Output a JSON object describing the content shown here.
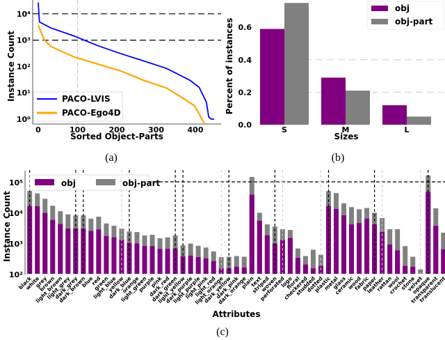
{
  "chart_data": [
    {
      "id": "a",
      "type": "line",
      "caption": "(a)",
      "title": "",
      "xlabel": "Sorted Object-Parts",
      "ylabel": "Instance Count",
      "yscale": "log",
      "xlim": [
        -10,
        460
      ],
      "ylim": [
        0.7,
        30000
      ],
      "xticks": [
        0,
        100,
        200,
        300,
        400
      ],
      "xtick_labels": [
        "0",
        "100",
        "200",
        "300",
        "400"
      ],
      "yticks": [
        1,
        10,
        100,
        1000,
        10000
      ],
      "ytick_labels": [
        "10⁰",
        "10¹",
        "10²",
        "10³",
        "10⁴"
      ],
      "hlines": [
        10000,
        1000
      ],
      "vlines": [
        100
      ],
      "legend_position": "lower-left",
      "series": [
        {
          "name": "PACO-LVIS",
          "color": "#0000ff",
          "x": [
            0,
            3,
            32,
            91,
            150,
            209,
            268,
            327,
            386,
            410,
            428,
            434,
            441,
            448
          ],
          "y": [
            27000,
            4900,
            2900,
            1440,
            630,
            310,
            163,
            84,
            30,
            16,
            4.4,
            1.2,
            1,
            1
          ]
        },
        {
          "name": "PACO-Ego4D",
          "color": "#ffa500",
          "x": [
            0,
            15,
            32,
            91,
            150,
            209,
            268,
            327,
            375,
            398,
            413,
            422
          ],
          "y": [
            3700,
            1050,
            575,
            230,
            125,
            68,
            30,
            15,
            5.4,
            3.2,
            1.3,
            0.7
          ]
        }
      ]
    },
    {
      "id": "b",
      "type": "bar",
      "caption": "(b)",
      "title": "",
      "xlabel": "Sizes",
      "ylabel": "Percent of instances",
      "categories": [
        "S",
        "M",
        "L"
      ],
      "ylim": [
        0,
        0.75
      ],
      "yticks": [
        0.0,
        0.2,
        0.4,
        0.6
      ],
      "ytick_labels": [
        "0.0",
        "0.2",
        "0.4",
        "0.6"
      ],
      "grid": "horizontal dashed",
      "legend_position": "top-right",
      "series": [
        {
          "name": "obj",
          "color": "#800080",
          "values": [
            0.59,
            0.29,
            0.12
          ]
        },
        {
          "name": "obj-part",
          "color": "#808080",
          "values": [
            0.75,
            0.21,
            0.05
          ]
        }
      ]
    },
    {
      "id": "c",
      "type": "bar",
      "stacked": true,
      "caption": "(c)",
      "title": "",
      "xlabel": "Attributes",
      "ylabel": "Instance Count",
      "yscale": "log",
      "ylim": [
        100,
        200000
      ],
      "yticks": [
        100,
        1000,
        10000,
        100000
      ],
      "ytick_labels": [
        "10²",
        "10³",
        "10⁴",
        "10⁵"
      ],
      "hlines": [
        100000
      ],
      "legend_position": "top-left",
      "categories": [
        "black",
        "white",
        "grey",
        "brown",
        "light_brown",
        "light_grey",
        "dark_grey",
        "dark_brown",
        "blue",
        "red",
        "green",
        "light_blue",
        "yellow",
        "dark_blue",
        "orange",
        "light_green",
        "purple",
        "pink",
        "dark_red",
        "dark_green",
        "light_yellow",
        "dark_purple",
        "light_purple",
        "light_pink",
        "light_red",
        "light_orange",
        "dark_yellow",
        "dark_pink",
        "dark_orange",
        "plain",
        "text",
        "striped",
        "woven",
        "perforated",
        "logo",
        "floral",
        "checkered",
        "studded",
        "dotted",
        "plastic",
        "metal",
        "glass",
        "ceramic",
        "wood",
        "fabric",
        "paper",
        "leather",
        "rattan",
        "wool",
        "crochet",
        "stone",
        "velvet",
        "opaque",
        "transparent",
        "translucent"
      ],
      "series": [
        {
          "name": "obj",
          "color": "#800080",
          "values": [
            16000,
            16000,
            9600,
            5700,
            4200,
            3000,
            3000,
            3000,
            2500,
            2800,
            1700,
            1550,
            1280,
            1020,
            980,
            800,
            800,
            650,
            650,
            670,
            370,
            390,
            350,
            320,
            260,
            150,
            150,
            170,
            160,
            38000,
            5400,
            1800,
            970,
            1280,
            1470,
            330,
            200,
            150,
            180,
            16000,
            13000,
            8100,
            4100,
            4500,
            6300,
            4100,
            2300,
            910,
            580,
            180,
            170,
            0,
            47000,
            3700,
            630
          ]
        },
        {
          "name": "obj-part (total)",
          "color": "#808080",
          "values": [
            50000,
            42000,
            28000,
            16600,
            11000,
            8700,
            8100,
            8100,
            6300,
            7300,
            4400,
            3700,
            3000,
            2400,
            2300,
            1780,
            1870,
            1440,
            1550,
            1780,
            850,
            970,
            820,
            720,
            540,
            350,
            360,
            380,
            360,
            145000,
            9800,
            4100,
            3500,
            2850,
            2700,
            670,
            380,
            610,
            420,
            50000,
            43000,
            20000,
            15000,
            12800,
            14000,
            9800,
            6600,
            2850,
            2850,
            800,
            360,
            140,
            162000,
            13700,
            2200
          ]
        }
      ],
      "vlines_black": [
        "black",
        "dark_grey",
        "dark_brown",
        "dark_blue",
        "dark_green",
        "light_yellow",
        "dark_yellow",
        "woven",
        "plastic",
        "paper",
        "opaque"
      ],
      "vlines_light": [
        "yellow",
        "light_orange",
        "perforated",
        "dotted",
        "leather",
        "velvet"
      ]
    }
  ]
}
